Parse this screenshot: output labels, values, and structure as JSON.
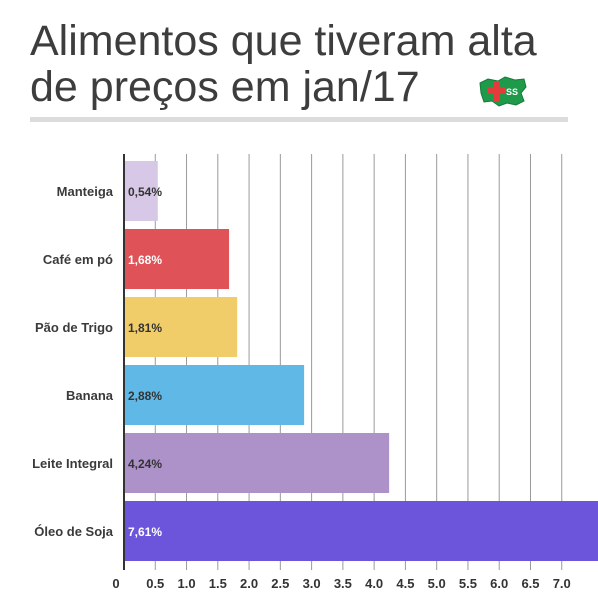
{
  "title": {
    "line1": "Alimentos que tiveram alta",
    "line2": "de preços em jan/17"
  },
  "logo": {
    "text": "SS"
  },
  "chart_data": {
    "type": "bar",
    "orientation": "horizontal",
    "title": "Alimentos que tiveram alta de preços em jan/17",
    "categories": [
      "Manteiga",
      "Café em pó",
      "Pão de Trigo",
      "Banana",
      "Leite Integral",
      "Óleo de Soja"
    ],
    "values": [
      0.54,
      1.68,
      1.81,
      2.88,
      4.24,
      7.61
    ],
    "value_labels": [
      "0,54%",
      "1,68%",
      "1,81%",
      "2,88%",
      "4,24%",
      "7,61%"
    ],
    "colors": [
      "#d6c8e6",
      "#df5257",
      "#f1cd6a",
      "#5fb8e6",
      "#ad91c9",
      "#6c55db"
    ],
    "label_colors": [
      "#333333",
      "#ffffff",
      "#333333",
      "#333333",
      "#333333",
      "#ffffff"
    ],
    "xlim": [
      0,
      7.1
    ],
    "xticks": [
      0,
      0.5,
      1.0,
      1.5,
      2.0,
      2.5,
      3.0,
      3.5,
      4.0,
      4.5,
      5.0,
      5.5,
      6.0,
      6.5,
      7.0
    ],
    "xtick_labels": [
      "0",
      "0.5",
      "1.0",
      "1.5",
      "2.0",
      "2.5",
      "3.0",
      "3.5",
      "4.0",
      "4.5",
      "5.0",
      "5.5",
      "6.0",
      "6.5",
      "7.0"
    ],
    "grid": true,
    "xlabel": "",
    "ylabel": ""
  }
}
